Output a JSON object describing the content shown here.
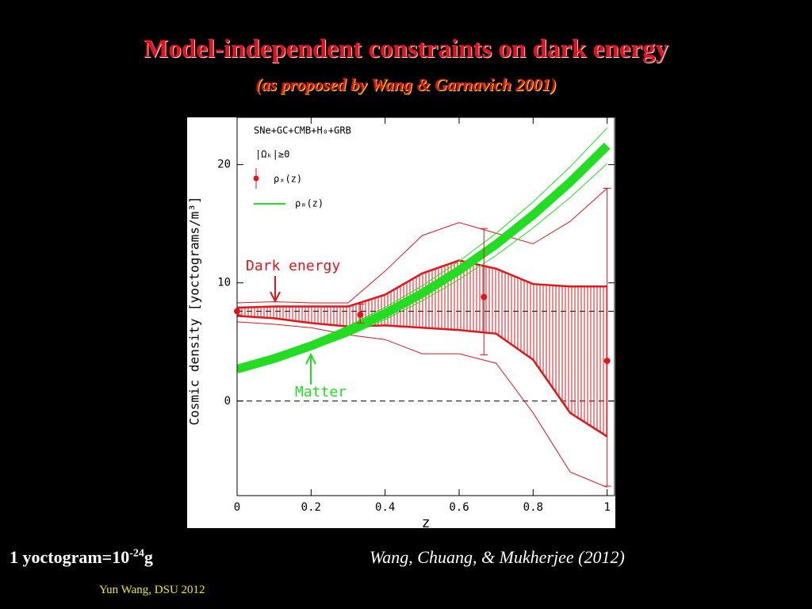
{
  "slide": {
    "title": "Model-independent constraints on dark energy",
    "subtitle": "(as proposed by Wang & Garnavich 2001)",
    "note_prefix": "1 yoctogram=10",
    "note_exponent": "-24",
    "note_suffix": "g",
    "citation": "Wang, Chuang, & Mukherjee (2012)",
    "footer": "Yun Wang, DSU 2012"
  },
  "chart_data": {
    "type": "errorbar",
    "x_label": "z",
    "y_label": "Cosmic density [yoctograms/m³]",
    "xlim": [
      0,
      1.02
    ],
    "ylim": [
      -8,
      24
    ],
    "xticks": [
      0,
      0.2,
      0.4,
      0.6,
      0.8,
      1
    ],
    "yticks": [
      0,
      10,
      20
    ],
    "legend_texts": [
      "SNe+GC+CMB+H₀+GRB",
      "|Ωₖ|≥0"
    ],
    "annotations": [
      {
        "text": "Dark energy",
        "color": "#e0161a"
      },
      {
        "text": "Matter",
        "color": "#22dd22"
      }
    ],
    "reference_lines": [
      0,
      7.6
    ],
    "series": [
      {
        "name": "ρₓ(z)",
        "color": "#e0161a",
        "x": [
          0,
          0.333,
          0.667,
          1
        ],
        "values": [
          7.6,
          7.3,
          8.8,
          3.4
        ],
        "lower": [
          7.3,
          6.6,
          3.9,
          -7.2
        ],
        "upper": [
          7.9,
          8.2,
          14.6,
          18.0
        ]
      },
      {
        "name": "ρₘ(z)",
        "color": "#22dd22",
        "x": [
          0,
          0.1,
          0.2,
          0.3,
          0.4,
          0.5,
          0.6,
          0.7,
          0.8,
          0.9,
          1
        ],
        "values": [
          2.7,
          3.59,
          4.67,
          5.93,
          7.41,
          9.11,
          11.06,
          13.26,
          15.75,
          18.52,
          21.6
        ],
        "lower": [
          2.51,
          3.34,
          4.34,
          5.51,
          6.89,
          8.47,
          10.29,
          12.33,
          14.65,
          17.22,
          20.09
        ],
        "upper": [
          2.89,
          3.84,
          5.0,
          6.35,
          7.93,
          9.75,
          11.83,
          14.19,
          16.85,
          19.82,
          23.11
        ]
      }
    ],
    "bands": [
      {
        "color": "#e0161a",
        "hatched": true,
        "x": [
          0,
          0.1,
          0.2,
          0.3,
          0.4,
          0.5,
          0.6,
          0.7,
          0.8,
          0.9,
          1
        ],
        "lower": [
          7.2,
          7.0,
          6.6,
          6.3,
          6.4,
          6.2,
          6.0,
          5.7,
          3.5,
          -1.0,
          -3.0
        ],
        "upper": [
          7.9,
          8.0,
          8.0,
          8.0,
          9.0,
          10.8,
          11.9,
          11.2,
          9.9,
          9.7,
          9.7
        ]
      },
      {
        "color": "#e0161a",
        "hatched": false,
        "x": [
          0,
          0.1,
          0.2,
          0.3,
          0.4,
          0.5,
          0.6,
          0.7,
          0.8,
          0.9,
          1
        ],
        "lower": [
          6.7,
          6.5,
          6.2,
          5.6,
          5.2,
          4.0,
          4.0,
          3.2,
          -1.0,
          -6.0,
          -7.3
        ],
        "upper": [
          8.3,
          8.4,
          8.3,
          8.3,
          11.0,
          14.0,
          15.1,
          14.2,
          13.3,
          15.2,
          18.0
        ]
      }
    ]
  }
}
